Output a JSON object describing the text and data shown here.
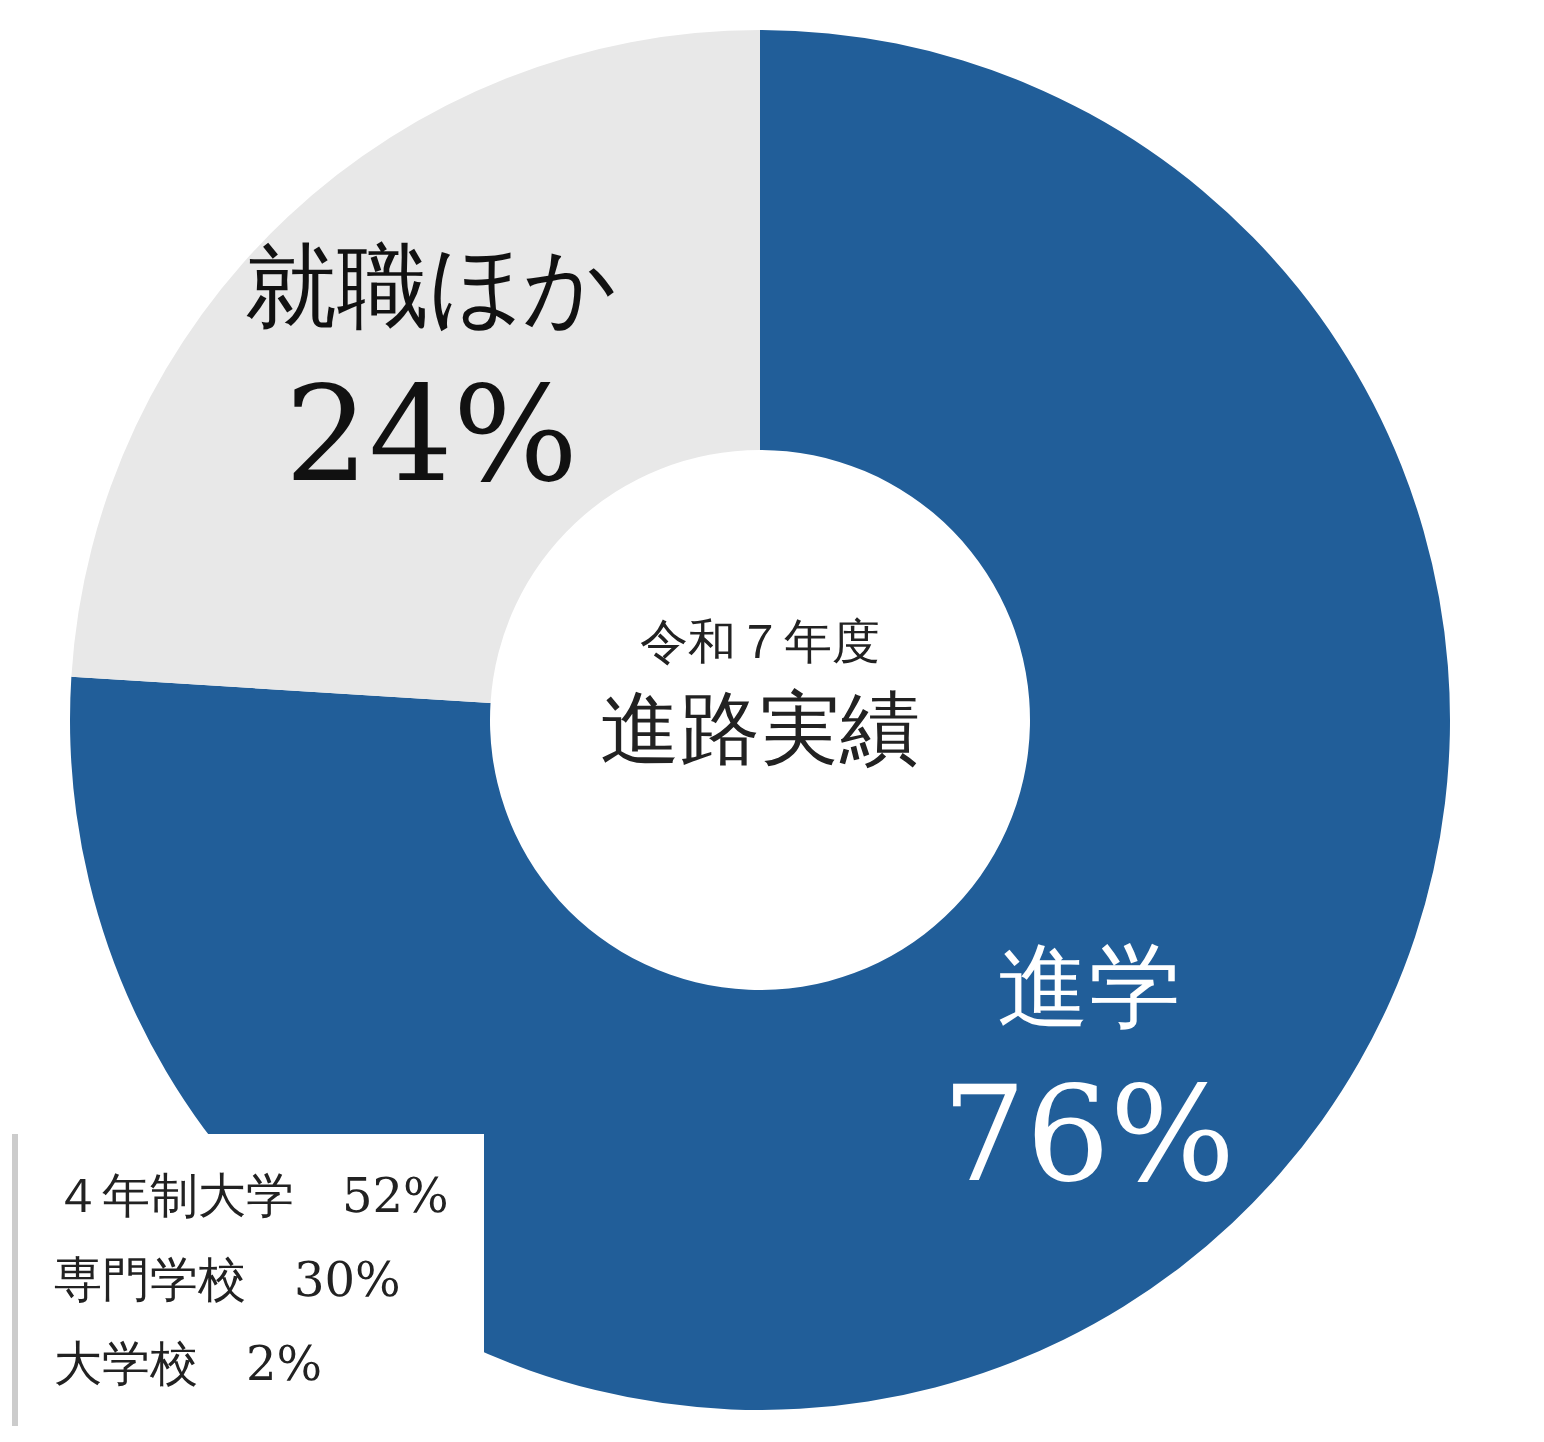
{
  "chart_data": {
    "type": "donut",
    "subtitle": "令和７年度",
    "title": "進路実績",
    "categories": [
      "進学",
      "就職ほか"
    ],
    "values": [
      76,
      24
    ],
    "colors": [
      "#215e99",
      "#e8e8e8"
    ],
    "value_labels": [
      "76%",
      "24%"
    ],
    "legend": false,
    "annotations": [
      "４年制大学　52%",
      "専門学校　30%",
      "大学校　2%"
    ]
  }
}
